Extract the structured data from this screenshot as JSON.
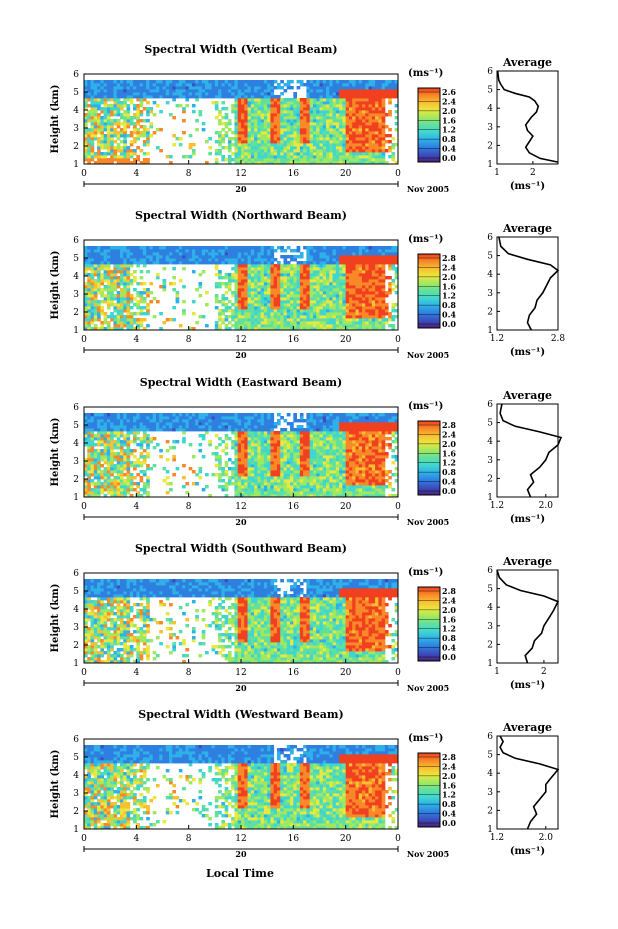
{
  "figure": {
    "xaxis_label": "Local Time",
    "height_label": "Height (km)",
    "date_suffix": "Nov 2005",
    "day_label": "20",
    "colorbar_unit": "(ms⁻¹)",
    "average_title": "Average",
    "average_xlabel": "(ms⁻¹)"
  },
  "colors": {
    "colormap": [
      "#4b1f7a",
      "#3b4fc0",
      "#2f7fe0",
      "#2fb0e8",
      "#40d6d0",
      "#60e0a0",
      "#a0e860",
      "#e8e840",
      "#f8c030",
      "#f88828",
      "#f04020"
    ],
    "grid_bg": "#ffffff"
  },
  "chart_data": [
    {
      "type": "heatmap",
      "title": "Spectral Width (Vertical Beam)",
      "x_ticks": [
        "0",
        "4",
        "8",
        "12",
        "16",
        "20",
        "0"
      ],
      "y_ticks": [
        "1",
        "2",
        "3",
        "4",
        "5",
        "6"
      ],
      "xlim": [
        0,
        24
      ],
      "ylim": [
        1,
        6
      ],
      "colorbar_ticks": [
        "2.6",
        "2.4",
        "2.0",
        "1.6",
        "1.2",
        "0.8",
        "0.4",
        "0.0"
      ],
      "average": {
        "title": "Average",
        "x_ticks": [
          "1",
          "2"
        ],
        "xlim": [
          1,
          2.7
        ],
        "y_ticks": [
          "1",
          "2",
          "3",
          "4",
          "5",
          "6"
        ],
        "profile": [
          [
            2.7,
            1.1
          ],
          [
            2.2,
            1.3
          ],
          [
            1.9,
            1.6
          ],
          [
            1.8,
            1.9
          ],
          [
            1.9,
            2.2
          ],
          [
            2.0,
            2.5
          ],
          [
            1.85,
            2.8
          ],
          [
            1.8,
            3.1
          ],
          [
            1.95,
            3.5
          ],
          [
            2.1,
            3.8
          ],
          [
            2.15,
            4.1
          ],
          [
            2.05,
            4.4
          ],
          [
            1.9,
            4.6
          ],
          [
            1.5,
            4.8
          ],
          [
            1.2,
            5.0
          ],
          [
            1.1,
            5.3
          ],
          [
            1.05,
            5.5
          ],
          [
            1.02,
            6.0
          ]
        ]
      }
    },
    {
      "type": "heatmap",
      "title": "Spectral Width (Northward Beam)",
      "x_ticks": [
        "0",
        "4",
        "8",
        "12",
        "16",
        "20",
        "0"
      ],
      "y_ticks": [
        "1",
        "2",
        "3",
        "4",
        "5",
        "6"
      ],
      "xlim": [
        0,
        24
      ],
      "ylim": [
        1,
        6
      ],
      "colorbar_ticks": [
        "2.8",
        "2.4",
        "2.0",
        "1.6",
        "1.2",
        "0.8",
        "0.4",
        "0.0"
      ],
      "average": {
        "title": "Average",
        "x_ticks": [
          "1.2",
          "2.8"
        ],
        "xlim": [
          1.2,
          2.8
        ],
        "y_ticks": [
          "1",
          "2",
          "3",
          "4",
          "5",
          "6"
        ],
        "profile": [
          [
            2.1,
            1.0
          ],
          [
            2.0,
            1.4
          ],
          [
            2.05,
            1.8
          ],
          [
            2.2,
            2.2
          ],
          [
            2.25,
            2.6
          ],
          [
            2.4,
            3.0
          ],
          [
            2.5,
            3.4
          ],
          [
            2.6,
            3.8
          ],
          [
            2.8,
            4.2
          ],
          [
            2.6,
            4.5
          ],
          [
            2.0,
            4.8
          ],
          [
            1.5,
            5.1
          ],
          [
            1.3,
            5.5
          ],
          [
            1.25,
            6.0
          ]
        ]
      }
    },
    {
      "type": "heatmap",
      "title": "Spectral Width (Eastward Beam)",
      "x_ticks": [
        "0",
        "4",
        "8",
        "12",
        "16",
        "20",
        "0"
      ],
      "y_ticks": [
        "1",
        "2",
        "3",
        "4",
        "5",
        "6"
      ],
      "xlim": [
        0,
        24
      ],
      "ylim": [
        1,
        6
      ],
      "colorbar_ticks": [
        "2.8",
        "2.4",
        "2.0",
        "1.6",
        "1.2",
        "0.8",
        "0.4",
        "0.0"
      ],
      "average": {
        "title": "Average",
        "x_ticks": [
          "1.2",
          "2.0"
        ],
        "xlim": [
          1.2,
          2.2
        ],
        "y_ticks": [
          "1",
          "2",
          "3",
          "4",
          "5",
          "6"
        ],
        "profile": [
          [
            1.75,
            1.0
          ],
          [
            1.7,
            1.4
          ],
          [
            1.8,
            1.8
          ],
          [
            1.75,
            2.2
          ],
          [
            1.9,
            2.6
          ],
          [
            2.0,
            3.0
          ],
          [
            2.05,
            3.4
          ],
          [
            2.2,
            3.8
          ],
          [
            2.25,
            4.2
          ],
          [
            1.9,
            4.5
          ],
          [
            1.5,
            4.8
          ],
          [
            1.3,
            5.1
          ],
          [
            1.25,
            5.5
          ],
          [
            1.28,
            6.0
          ]
        ]
      }
    },
    {
      "type": "heatmap",
      "title": "Spectral Width (Southward Beam)",
      "x_ticks": [
        "0",
        "4",
        "8",
        "12",
        "16",
        "20",
        "0"
      ],
      "y_ticks": [
        "1",
        "2",
        "3",
        "4",
        "5",
        "6"
      ],
      "xlim": [
        0,
        24
      ],
      "ylim": [
        1,
        6
      ],
      "colorbar_ticks": [
        "2.8",
        "2.4",
        "2.0",
        "1.6",
        "1.2",
        "0.8",
        "0.4",
        "0.0"
      ],
      "average": {
        "title": "Average",
        "x_ticks": [
          "1",
          "2"
        ],
        "xlim": [
          1,
          2.3
        ],
        "y_ticks": [
          "1",
          "2",
          "3",
          "4",
          "5",
          "6"
        ],
        "profile": [
          [
            1.65,
            1.0
          ],
          [
            1.6,
            1.4
          ],
          [
            1.75,
            1.8
          ],
          [
            1.8,
            2.2
          ],
          [
            1.95,
            2.6
          ],
          [
            2.0,
            3.0
          ],
          [
            2.1,
            3.4
          ],
          [
            2.2,
            3.8
          ],
          [
            2.3,
            4.3
          ],
          [
            2.0,
            4.6
          ],
          [
            1.5,
            4.9
          ],
          [
            1.2,
            5.2
          ],
          [
            1.05,
            5.6
          ],
          [
            1.0,
            6.0
          ]
        ]
      }
    },
    {
      "type": "heatmap",
      "title": "Spectral Width (Westward Beam)",
      "x_ticks": [
        "0",
        "4",
        "8",
        "12",
        "16",
        "20",
        "0"
      ],
      "y_ticks": [
        "1",
        "2",
        "3",
        "4",
        "5",
        "6"
      ],
      "xlim": [
        0,
        24
      ],
      "ylim": [
        1,
        6
      ],
      "colorbar_ticks": [
        "2.8",
        "2.4",
        "2.0",
        "1.6",
        "1.2",
        "0.8",
        "0.4",
        "0.0"
      ],
      "average": {
        "title": "Average",
        "x_ticks": [
          "1.2",
          "2.0"
        ],
        "xlim": [
          1.2,
          2.2
        ],
        "y_ticks": [
          "1",
          "2",
          "3",
          "4",
          "5",
          "6"
        ],
        "profile": [
          [
            1.7,
            1.0
          ],
          [
            1.75,
            1.4
          ],
          [
            1.85,
            1.8
          ],
          [
            1.8,
            2.2
          ],
          [
            1.9,
            2.6
          ],
          [
            2.0,
            3.0
          ],
          [
            2.0,
            3.4
          ],
          [
            2.1,
            3.8
          ],
          [
            2.2,
            4.2
          ],
          [
            1.9,
            4.5
          ],
          [
            1.5,
            4.8
          ],
          [
            1.3,
            5.1
          ],
          [
            1.25,
            5.4
          ],
          [
            1.3,
            5.7
          ],
          [
            1.25,
            6.0
          ]
        ]
      }
    }
  ]
}
